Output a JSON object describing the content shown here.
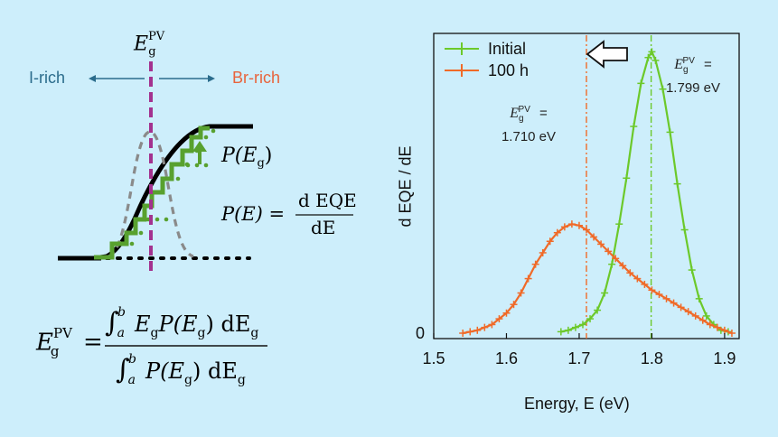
{
  "schematic": {
    "eg_label_main": "E",
    "eg_label_sub": "g",
    "eg_label_sup": "PV",
    "i_rich": "I-rich",
    "br_rich": "Br-rich",
    "p_eg_label": "P(E",
    "p_eg_sub": "g",
    "p_eg_close": ")",
    "pe_lhs": "P(E) =",
    "pe_num": "d EQE",
    "pe_den": "dE",
    "colors": {
      "i_rich": "#2b6c8c",
      "br_rich": "#e8643c",
      "dashed_line": "#a3328f",
      "step": "#58a12f",
      "gauss": "#8a8a8a"
    }
  },
  "formula": {
    "lhs_main": "E",
    "lhs_sup": "PV",
    "lhs_sub": "g",
    "eq": "=",
    "num_int_lower": "a",
    "num_int_upper": "b",
    "num_body": "E",
    "num_body_sub": "g",
    "num_p": "P(E",
    "num_p_sub": "g",
    "num_tail": ") dE",
    "num_tail_sub": "g",
    "den_int_lower": "a",
    "den_int_upper": "b",
    "den_p": "P(E",
    "den_p_sub": "g",
    "den_tail": ") dE",
    "den_tail_sub": "g"
  },
  "annotations": {
    "eg_100h_name": "E",
    "eg_100h_sub": "g",
    "eg_100h_sup": "PV",
    "eg_100h_eq": " =",
    "eg_100h_value": "1.710 eV",
    "eg_initial_name": "E",
    "eg_initial_sub": "g",
    "eg_initial_sup": "PV",
    "eg_initial_eq": " =",
    "eg_initial_value": "1.799 eV"
  },
  "chart_data": {
    "type": "line",
    "xlabel": "Energy, E (eV)",
    "ylabel": "d EQE / dE",
    "xlim": [
      1.5,
      1.92
    ],
    "ylim": [
      0,
      1.0
    ],
    "xticks": [
      "1.5",
      "1.6",
      "1.7",
      "1.8",
      "1.9"
    ],
    "yticks": [
      "0"
    ],
    "legend_position": "top-left",
    "series": [
      {
        "name": "Initial",
        "color": "#6cc92a",
        "x": [
          1.675,
          1.685,
          1.695,
          1.705,
          1.715,
          1.725,
          1.735,
          1.745,
          1.755,
          1.765,
          1.775,
          1.785,
          1.795,
          1.8,
          1.805,
          1.815,
          1.825,
          1.835,
          1.845,
          1.855,
          1.865,
          1.875,
          1.885,
          1.895,
          1.905
        ],
        "y": [
          0.005,
          0.01,
          0.02,
          0.03,
          0.05,
          0.08,
          0.14,
          0.24,
          0.38,
          0.54,
          0.72,
          0.87,
          0.96,
          0.98,
          0.95,
          0.85,
          0.7,
          0.52,
          0.36,
          0.22,
          0.12,
          0.06,
          0.03,
          0.01,
          0.005
        ]
      },
      {
        "name": "100 h",
        "color": "#f06a28",
        "x": [
          1.54,
          1.55,
          1.56,
          1.57,
          1.58,
          1.59,
          1.6,
          1.61,
          1.62,
          1.63,
          1.64,
          1.65,
          1.66,
          1.67,
          1.68,
          1.69,
          1.7,
          1.71,
          1.72,
          1.73,
          1.74,
          1.75,
          1.76,
          1.77,
          1.78,
          1.79,
          1.8,
          1.81,
          1.82,
          1.83,
          1.84,
          1.85,
          1.86,
          1.87,
          1.88,
          1.89,
          1.9,
          1.91
        ],
        "y": [
          0.0,
          0.005,
          0.01,
          0.02,
          0.03,
          0.05,
          0.07,
          0.1,
          0.14,
          0.19,
          0.24,
          0.28,
          0.32,
          0.35,
          0.37,
          0.38,
          0.375,
          0.36,
          0.335,
          0.31,
          0.285,
          0.26,
          0.235,
          0.21,
          0.19,
          0.17,
          0.15,
          0.135,
          0.12,
          0.105,
          0.09,
          0.075,
          0.06,
          0.045,
          0.03,
          0.02,
          0.01,
          0.0
        ]
      }
    ],
    "vlines": [
      {
        "x": 1.71,
        "color": "#f06a28"
      },
      {
        "x": 1.799,
        "color": "#6cc92a"
      }
    ]
  }
}
